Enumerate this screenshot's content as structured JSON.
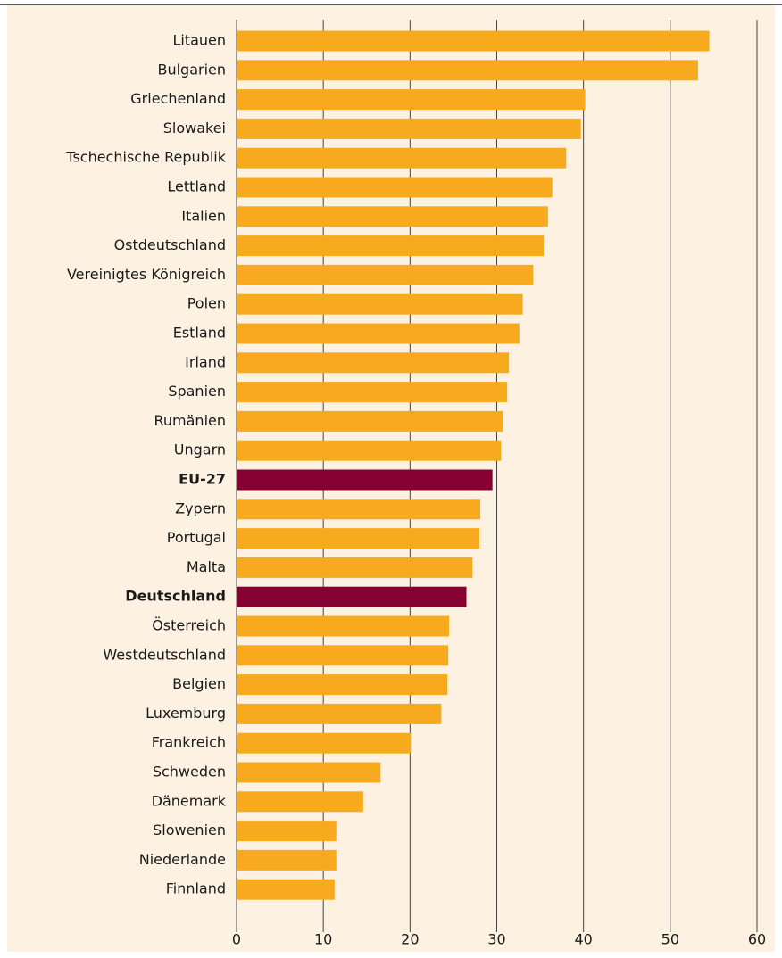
{
  "chart_data": {
    "type": "hbar",
    "categories": [
      "Litauen",
      "Bulgarien",
      "Griechenland",
      "Slowakei",
      "Tschechische Republik",
      "Lettland",
      "Italien",
      "Ostdeutschland",
      "Vereinigtes Königreich",
      "Polen",
      "Estland",
      "Irland",
      "Spanien",
      "Rumänien",
      "Ungarn",
      "EU-27",
      "Zypern",
      "Portugal",
      "Malta",
      "Deutschland",
      "Österreich",
      "Westdeutschland",
      "Belgien",
      "Luxemburg",
      "Frankreich",
      "Schweden",
      "Dänemark",
      "Slowenien",
      "Niederlande",
      "Finnland"
    ],
    "values": [
      54.5,
      53.2,
      40.2,
      39.7,
      38.0,
      36.4,
      35.9,
      35.4,
      34.2,
      33.0,
      32.6,
      31.4,
      31.2,
      30.7,
      30.5,
      29.5,
      28.1,
      28.0,
      27.2,
      26.5,
      24.5,
      24.4,
      24.3,
      23.6,
      20.1,
      16.6,
      14.6,
      11.5,
      11.5,
      11.3
    ],
    "color": "#f8aa1e",
    "colors": [
      "#f8aa1e",
      "#f8aa1e",
      "#f8aa1e",
      "#f8aa1e",
      "#f8aa1e",
      "#f8aa1e",
      "#f8aa1e",
      "#f8aa1e",
      "#f8aa1e",
      "#f8aa1e",
      "#f8aa1e",
      "#f8aa1e",
      "#f8aa1e",
      "#f8aa1e",
      "#f8aa1e",
      "#860031",
      "#f8aa1e",
      "#f8aa1e",
      "#f8aa1e",
      "#860031",
      "#f8aa1e",
      "#f8aa1e",
      "#f8aa1e",
      "#f8aa1e",
      "#f8aa1e",
      "#f8aa1e",
      "#f8aa1e",
      "#f8aa1e",
      "#f8aa1e",
      "#f8aa1e"
    ],
    "xlim": [
      0,
      60
    ],
    "xticks": [
      0,
      10,
      20,
      30,
      40,
      50,
      60
    ],
    "grid": true
  }
}
